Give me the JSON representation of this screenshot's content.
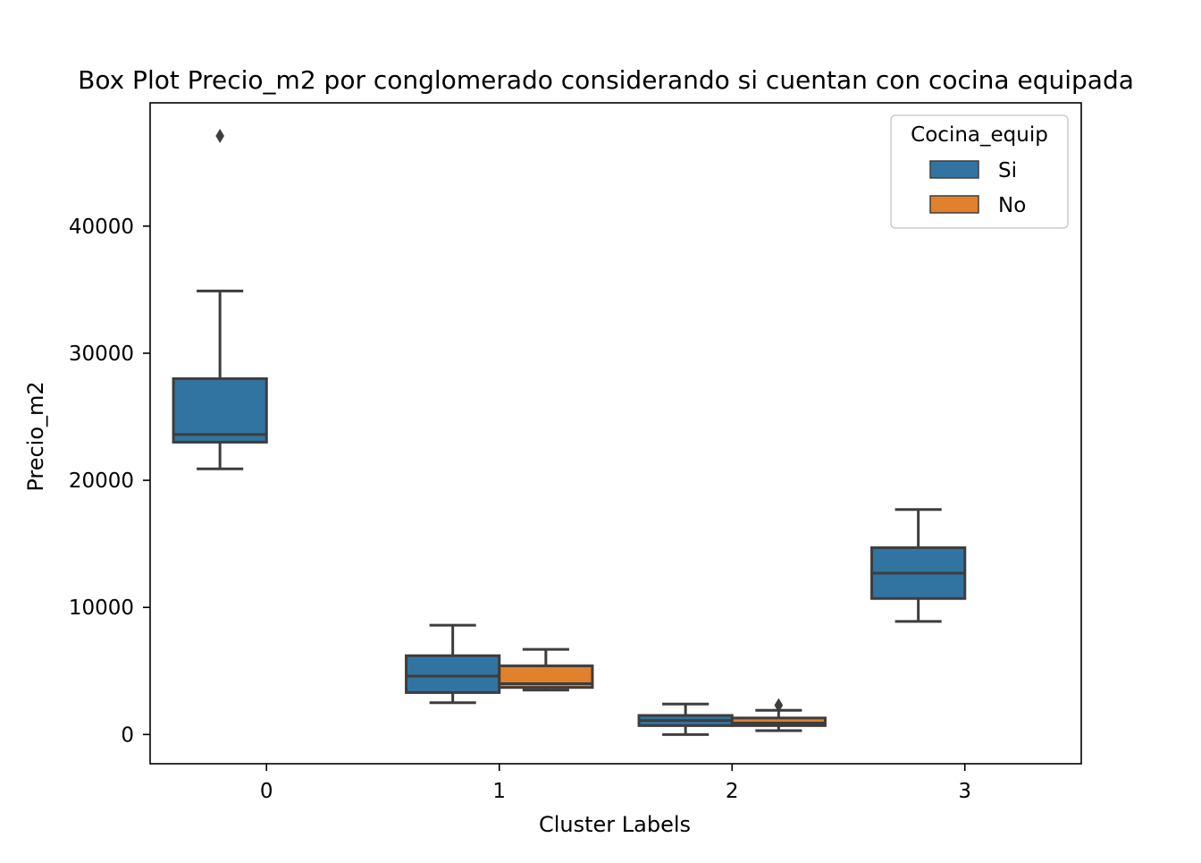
{
  "chart_data": {
    "type": "box",
    "title": "Box Plot Precio_m2 por conglomerado considerando si cuentan con cocina equipada",
    "xlabel": "Cluster Labels",
    "ylabel": "Precio_m2",
    "categories": [
      "0",
      "1",
      "2",
      "3"
    ],
    "yticks": [
      0,
      10000,
      20000,
      30000,
      40000
    ],
    "ylim": [
      -2300,
      49700
    ],
    "legend": {
      "title": "Cocina_equip",
      "placement": "top-right",
      "entries": [
        {
          "label": "Si",
          "color": "#3274a1"
        },
        {
          "label": "No",
          "color": "#e1812c"
        }
      ]
    },
    "series": [
      {
        "name": "Si",
        "color": "#3274a1",
        "boxes": [
          {
            "category": "0",
            "whisker_low": 20900,
            "q1": 23000,
            "median": 23600,
            "q3": 28000,
            "whisker_high": 34900,
            "outliers": [
              47100
            ]
          },
          {
            "category": "1",
            "whisker_low": 2500,
            "q1": 3300,
            "median": 4600,
            "q3": 6200,
            "whisker_high": 8600,
            "outliers": []
          },
          {
            "category": "2",
            "whisker_low": 0,
            "q1": 700,
            "median": 1100,
            "q3": 1500,
            "whisker_high": 2400,
            "outliers": []
          },
          {
            "category": "3",
            "whisker_low": 8900,
            "q1": 10700,
            "median": 12700,
            "q3": 14700,
            "whisker_high": 17700,
            "outliers": []
          }
        ]
      },
      {
        "name": "No",
        "color": "#e1812c",
        "boxes": [
          {
            "category": "1",
            "whisker_low": 3500,
            "q1": 3700,
            "median": 4000,
            "q3": 5400,
            "whisker_high": 6700,
            "outliers": []
          },
          {
            "category": "2",
            "whisker_low": 300,
            "q1": 700,
            "median": 900,
            "q3": 1300,
            "whisker_high": 1900,
            "outliers": [
              2300
            ]
          }
        ]
      }
    ],
    "grid": false
  }
}
